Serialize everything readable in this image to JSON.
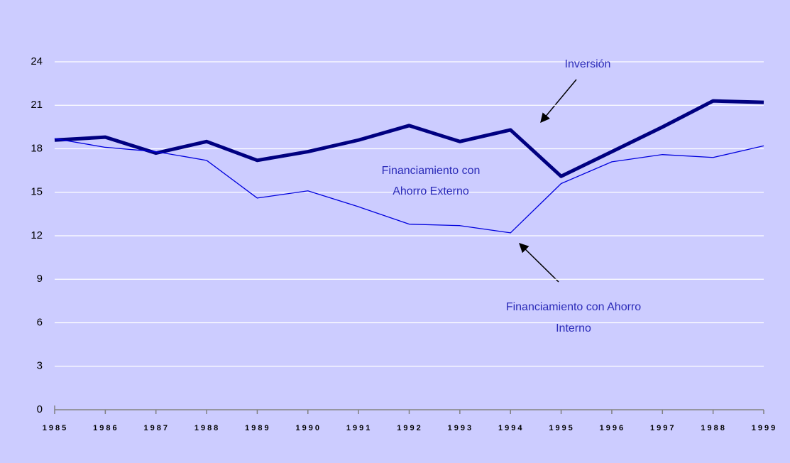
{
  "chart_data": {
    "type": "line",
    "categories": [
      "1985",
      "1986",
      "1987",
      "1988",
      "1989",
      "1990",
      "1991",
      "1992",
      "1993",
      "1994",
      "1995",
      "1996",
      "1997",
      "1988",
      "1999"
    ],
    "series": [
      {
        "label_lines": [
          "Inversión"
        ],
        "color": "#000080",
        "width": 5,
        "values": [
          18.6,
          18.8,
          17.7,
          18.5,
          17.2,
          17.8,
          18.6,
          19.6,
          18.5,
          19.3,
          16.1,
          17.8,
          19.5,
          21.3,
          21.2
        ]
      },
      {
        "label_lines": [
          "Financiamiento con Ahorro",
          "Interno"
        ],
        "color": "#0000dd",
        "width": 1.3,
        "values": [
          18.7,
          18.1,
          17.8,
          17.2,
          14.6,
          15.1,
          14.0,
          12.8,
          12.7,
          12.2,
          15.6,
          17.1,
          17.6,
          17.4,
          18.2
        ]
      }
    ],
    "annotations": [
      {
        "lines": [
          "Financiamiento con",
          "Ahorro Externo"
        ]
      }
    ],
    "ylim": [
      0,
      24
    ],
    "yticks": [
      0,
      3,
      6,
      9,
      12,
      15,
      18,
      21,
      24
    ],
    "grid": true
  }
}
